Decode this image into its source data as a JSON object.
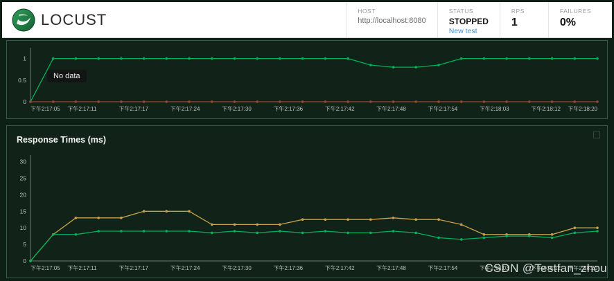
{
  "header": {
    "brand": "LOCUST",
    "stats": [
      {
        "label": "HOST",
        "value": "http://localhost:8080"
      },
      {
        "label": "STATUS",
        "value": "STOPPED",
        "link": "New test"
      },
      {
        "label": "RPS",
        "value": "1"
      },
      {
        "label": "FAILURES",
        "value": "0%"
      }
    ]
  },
  "tooltip": {
    "text": "No data"
  },
  "watermark": "CSDN @Testfan_zhou",
  "colors": {
    "chart_axis": "#6d7f73",
    "chart_text": "#b7c4bb",
    "green_line": "#00b35a",
    "orange_line": "#c9a24a",
    "red_line": "#96492f"
  },
  "chart_data": [
    {
      "type": "line",
      "title": "",
      "ylim": [
        0,
        1.25
      ],
      "yticks": [
        0,
        0.5,
        1
      ],
      "x_ticklabels": [
        "下午2:17:05",
        "下午2:17:11",
        "下午2:17:17",
        "下午2:17:24",
        "下午2:17:30",
        "下午2:17:36",
        "下午2:17:42",
        "下午2:17:48",
        "下午2:17:54",
        "下午2:18:03",
        "下午2:18:12",
        "下午2:18:20"
      ],
      "series": [
        {
          "name": "series_green",
          "color": "#00b35a",
          "values": [
            0,
            1,
            1,
            1,
            1,
            1,
            1,
            1,
            1,
            1,
            1,
            1,
            1,
            1,
            1,
            0.85,
            0.8,
            0.8,
            0.85,
            1,
            1,
            1,
            1,
            1,
            1,
            1
          ]
        },
        {
          "name": "series_red",
          "color": "#96492f",
          "values": [
            0,
            0,
            0,
            0,
            0,
            0,
            0,
            0,
            0,
            0,
            0,
            0,
            0,
            0,
            0,
            0,
            0,
            0,
            0,
            0,
            0,
            0,
            0,
            0,
            0,
            0
          ]
        }
      ]
    },
    {
      "type": "line",
      "title": "Response Times (ms)",
      "ylim": [
        0,
        32
      ],
      "yticks": [
        0,
        5,
        10,
        15,
        20,
        25,
        30
      ],
      "x_ticklabels": [
        "下午2:17:05",
        "下午2:17:11",
        "下午2:17:17",
        "下午2:17:24",
        "下午2:17:30",
        "下午2:17:36",
        "下午2:17:42",
        "下午2:17:48",
        "下午2:17:54",
        "下午2:18:03",
        "下午2:18:12",
        "下午2:18:20"
      ],
      "series": [
        {
          "name": "series_orange",
          "color": "#c9a24a",
          "values": [
            0,
            8,
            13,
            13,
            13,
            15,
            15,
            15,
            11,
            11,
            11,
            11,
            12.5,
            12.5,
            12.5,
            12.5,
            13,
            12.5,
            12.5,
            11,
            8,
            8,
            8,
            8,
            10,
            10
          ]
        },
        {
          "name": "series_green",
          "color": "#00b35a",
          "values": [
            0,
            8,
            8,
            9,
            9,
            9,
            9,
            9,
            8.5,
            9,
            8.5,
            9,
            8.5,
            9,
            8.5,
            8.5,
            9,
            8.5,
            7,
            6.5,
            7,
            7.5,
            7.5,
            7,
            8.5,
            9
          ]
        }
      ]
    }
  ]
}
